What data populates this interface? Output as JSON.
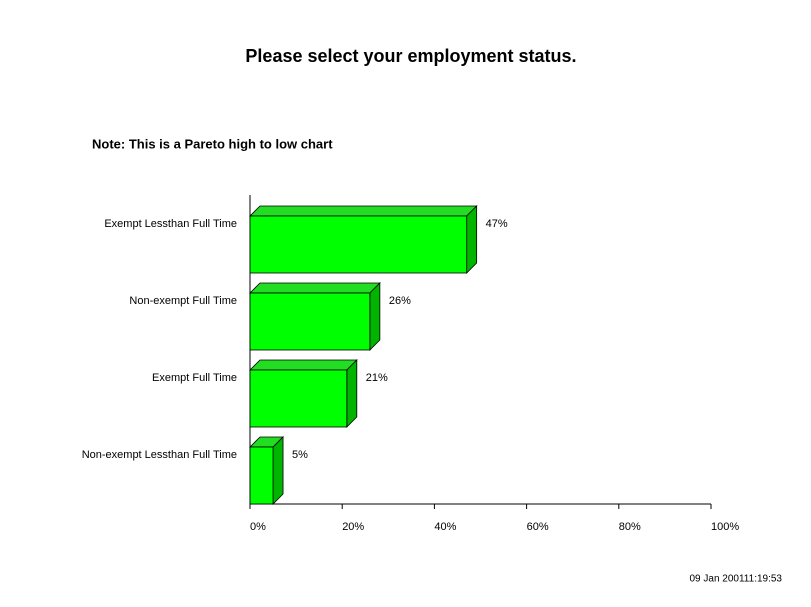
{
  "chart_data": {
    "type": "hbar",
    "title": "Please select your employment status.",
    "subtitle": "Note: This is a Pareto high to low chart",
    "categories": [
      "Exempt Lessthan Full Time",
      "Non-exempt Full Time",
      "Exempt Full Time",
      "Non-exempt Lessthan Full Time"
    ],
    "values": [
      47,
      26,
      21,
      5
    ],
    "value_labels": [
      "47%",
      "26%",
      "21%",
      "5%"
    ],
    "color": "#00ff00",
    "xlim": [
      0,
      100
    ],
    "xticks": [
      {
        "value": 0,
        "label": "0%"
      },
      {
        "value": 20,
        "label": "20%"
      },
      {
        "value": 40,
        "label": "40%"
      },
      {
        "value": 60,
        "label": "60%"
      },
      {
        "value": 80,
        "label": "80%"
      },
      {
        "value": 100,
        "label": "100%"
      }
    ],
    "timestamp": "09 Jan 200111:19:53"
  }
}
